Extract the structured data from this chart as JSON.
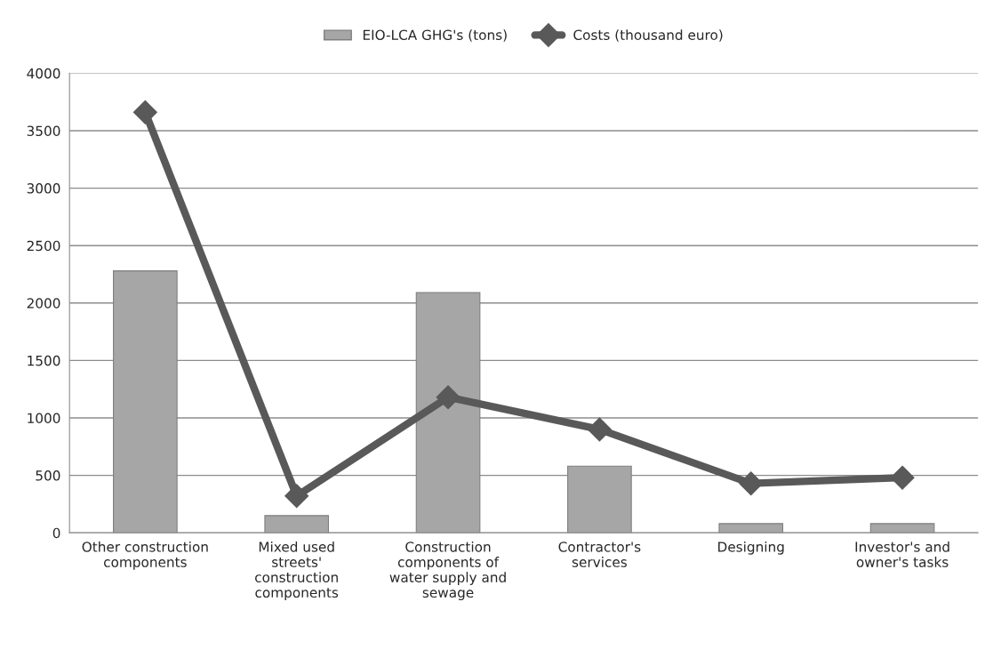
{
  "chart_data": {
    "type": "bar",
    "categories": [
      "Other construction components",
      "Mixed used streets' construction components",
      "Construction components of water supply and sewage",
      "Contractor's services",
      "Designing",
      "Investor's and owner's tasks"
    ],
    "series": [
      {
        "name": "EIO-LCA GHG's (tons)",
        "color": "#a6a6a6",
        "values": [
          2280,
          150,
          2090,
          580,
          80,
          80
        ]
      },
      {
        "name": "Costs (thousand euro)",
        "type": "line",
        "color": "#595959",
        "marker": "diamond",
        "values": [
          3660,
          320,
          1180,
          900,
          430,
          480
        ]
      }
    ],
    "ylim": [
      0,
      4000
    ],
    "yticks": [
      0,
      500,
      1000,
      1500,
      2000,
      2500,
      3000,
      3500,
      4000
    ],
    "grid": "y",
    "legend": "top"
  }
}
